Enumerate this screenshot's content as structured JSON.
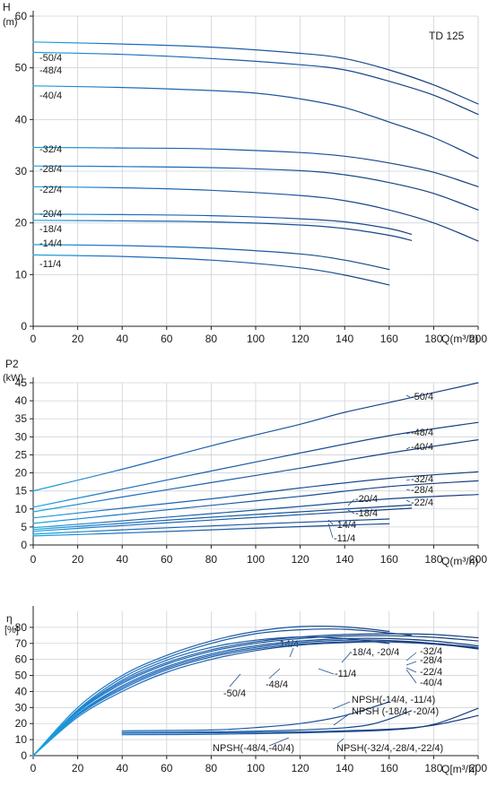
{
  "chart_data": [
    {
      "type": "line",
      "title": "TD 125",
      "ylabel": "H",
      "yunit": "(m)",
      "xlabel": "Q(m³/h)",
      "xlim": [
        0,
        200
      ],
      "ylim": [
        0,
        60
      ],
      "xticks": [
        0,
        20,
        40,
        60,
        80,
        100,
        120,
        140,
        160,
        180,
        200
      ],
      "yticks": [
        0,
        10,
        20,
        30,
        40,
        50,
        60
      ],
      "grid": true,
      "series": [
        {
          "name": "-50/4",
          "x": [
            0,
            40,
            80,
            120,
            140,
            160,
            180,
            200
          ],
          "y": [
            55,
            54.6,
            54,
            52.8,
            51.8,
            49.6,
            46.7,
            43
          ]
        },
        {
          "name": "-48/4",
          "x": [
            0,
            40,
            80,
            120,
            140,
            160,
            180,
            200
          ],
          "y": [
            53,
            52.6,
            51.8,
            50.6,
            49.6,
            47.4,
            44.7,
            41
          ]
        },
        {
          "name": "-40/4",
          "x": [
            0,
            40,
            80,
            100,
            120,
            140,
            160,
            180,
            200
          ],
          "y": [
            46.5,
            46.2,
            45.6,
            45.1,
            44,
            42.3,
            39.5,
            36.5,
            32.5
          ]
        },
        {
          "name": "-32/4",
          "x": [
            0,
            40,
            80,
            120,
            140,
            160,
            180,
            200
          ],
          "y": [
            34.6,
            34.5,
            34.3,
            33.6,
            32.9,
            31.6,
            29.8,
            27
          ]
        },
        {
          "name": "-28/4",
          "x": [
            0,
            40,
            80,
            120,
            140,
            160,
            180,
            200
          ],
          "y": [
            31,
            30.9,
            30.7,
            30.1,
            29.3,
            27.8,
            25.7,
            22.5
          ]
        },
        {
          "name": "-22/4",
          "x": [
            0,
            40,
            80,
            120,
            140,
            160,
            180,
            200
          ],
          "y": [
            27,
            26.8,
            26.3,
            25.3,
            24.3,
            22.5,
            20,
            16.5
          ]
        },
        {
          "name": "-20/4",
          "x": [
            0,
            40,
            80,
            120,
            140,
            160,
            170
          ],
          "y": [
            21.7,
            21.6,
            21.4,
            20.8,
            20.2,
            18.9,
            17.8
          ]
        },
        {
          "name": "-18/4",
          "x": [
            0,
            40,
            80,
            120,
            140,
            160,
            170
          ],
          "y": [
            20.5,
            20.4,
            20.2,
            19.6,
            18.9,
            17.6,
            16.6
          ]
        },
        {
          "name": "-14/4",
          "x": [
            0,
            40,
            80,
            120,
            140,
            160
          ],
          "y": [
            15.8,
            15.6,
            15.1,
            14,
            12.8,
            11
          ]
        },
        {
          "name": "-11/4",
          "x": [
            0,
            40,
            80,
            120,
            140,
            160
          ],
          "y": [
            13.8,
            13.5,
            12.8,
            11.3,
            9.9,
            8
          ]
        }
      ]
    },
    {
      "type": "line",
      "ylabel": "P2",
      "yunit": "(kW)",
      "xlabel": "Q(m³/h)",
      "xlim": [
        0,
        200
      ],
      "ylim": [
        0,
        45
      ],
      "xticks": [
        0,
        20,
        40,
        60,
        80,
        100,
        120,
        140,
        160,
        180,
        200
      ],
      "yticks": [
        0,
        5,
        10,
        15,
        20,
        25,
        30,
        35,
        40,
        45
      ],
      "grid": true,
      "series": [
        {
          "name": "-50/4",
          "x": [
            0,
            40,
            80,
            120,
            140,
            160,
            200
          ],
          "y": [
            15,
            21,
            27.5,
            33.5,
            36.8,
            39.5,
            45
          ]
        },
        {
          "name": "-48/4",
          "x": [
            0,
            40,
            80,
            120,
            160,
            200
          ],
          "y": [
            10.5,
            15.5,
            20.5,
            25.5,
            30.3,
            34
          ]
        },
        {
          "name": "-40/4",
          "x": [
            0,
            40,
            80,
            120,
            160,
            200
          ],
          "y": [
            9.2,
            13.3,
            17.3,
            21.3,
            25.5,
            29.2
          ]
        },
        {
          "name": "-32/4",
          "x": [
            0,
            40,
            80,
            120,
            160,
            200
          ],
          "y": [
            7.5,
            10.2,
            12.8,
            15.8,
            18.5,
            20.3
          ]
        },
        {
          "name": "-28/4",
          "x": [
            0,
            40,
            80,
            120,
            160,
            200
          ],
          "y": [
            6,
            8.5,
            11,
            13.5,
            16.2,
            17.8
          ]
        },
        {
          "name": "-22/4",
          "x": [
            0,
            40,
            80,
            120,
            160,
            200
          ],
          "y": [
            4.8,
            6.7,
            8.7,
            10.7,
            12.8,
            14
          ]
        },
        {
          "name": "-20/4",
          "x": [
            0,
            40,
            80,
            120,
            170
          ],
          "y": [
            4.3,
            6,
            7.7,
            9.2,
            11.1
          ]
        },
        {
          "name": "-18/4",
          "x": [
            0,
            40,
            80,
            120,
            170
          ],
          "y": [
            3.8,
            5.4,
            6.9,
            8.4,
            10.2
          ]
        },
        {
          "name": "-14/4",
          "x": [
            0,
            40,
            80,
            120,
            160
          ],
          "y": [
            3,
            4.2,
            5.3,
            6.3,
            7.2
          ]
        },
        {
          "name": "-11/4",
          "x": [
            0,
            40,
            80,
            120,
            160
          ],
          "y": [
            2.5,
            3.3,
            4.2,
            5.1,
            5.9
          ]
        }
      ]
    },
    {
      "type": "line",
      "ylabel": "η",
      "yunit": "[%]",
      "xlabel": "Q[m³/h]",
      "xlim": [
        0,
        200
      ],
      "ylim": [
        0,
        90
      ],
      "xticks": [
        0,
        20,
        40,
        60,
        80,
        100,
        120,
        140,
        160,
        180,
        200
      ],
      "yticks": [
        0,
        10,
        20,
        30,
        40,
        50,
        60,
        70,
        80
      ],
      "grid": true,
      "series": [
        {
          "name": "-14/4",
          "x": [
            0,
            20,
            40,
            60,
            80,
            100,
            120,
            140,
            160
          ],
          "y": [
            0,
            30,
            50,
            62.5,
            71.5,
            77.5,
            80.5,
            80.3,
            77.5
          ]
        },
        {
          "name": "-18/4, -20/4",
          "x": [
            0,
            20,
            40,
            60,
            80,
            100,
            120,
            140,
            160,
            170
          ],
          "y": [
            0,
            28.5,
            48.5,
            61,
            70,
            76,
            78.5,
            78.8,
            76.5,
            75
          ]
        },
        {
          "name": "-11/4",
          "x": [
            0,
            20,
            40,
            60,
            80,
            100,
            120,
            140,
            160
          ],
          "y": [
            0,
            28,
            47,
            59.5,
            67.5,
            72,
            74,
            73,
            70
          ]
        },
        {
          "name": "-32/4",
          "x": [
            0,
            20,
            40,
            60,
            80,
            100,
            120,
            140,
            160,
            180,
            200
          ],
          "y": [
            0,
            27.5,
            46,
            58,
            66,
            71,
            74,
            75.5,
            76,
            75.5,
            73.5
          ]
        },
        {
          "name": "-28/4",
          "x": [
            0,
            20,
            40,
            60,
            80,
            100,
            120,
            140,
            160,
            180,
            200
          ],
          "y": [
            0,
            27,
            45,
            57,
            65,
            70,
            73,
            74.5,
            74.8,
            73.8,
            71.5
          ]
        },
        {
          "name": "-22/4",
          "x": [
            0,
            20,
            40,
            60,
            80,
            100,
            120,
            140,
            160,
            180,
            200
          ],
          "y": [
            0,
            26,
            43.5,
            55.5,
            63.5,
            68.5,
            71.5,
            73,
            73,
            71.5,
            68.5
          ]
        },
        {
          "name": "-40/4",
          "x": [
            0,
            20,
            40,
            60,
            80,
            100,
            120,
            140,
            160,
            180,
            200
          ],
          "y": [
            0,
            25.5,
            42.5,
            54.5,
            62.5,
            67.5,
            70.5,
            72,
            71.8,
            70,
            66.5
          ]
        },
        {
          "name": "-48/4",
          "x": [
            0,
            20,
            40,
            60,
            80,
            100,
            120,
            140,
            160,
            180,
            200
          ],
          "y": [
            0,
            25,
            41.5,
            53.5,
            61.5,
            66.5,
            69.5,
            71,
            71,
            69.5,
            67
          ]
        },
        {
          "name": "-50/4",
          "x": [
            0,
            20,
            40,
            60,
            80,
            100,
            120,
            140,
            160,
            180,
            200
          ],
          "y": [
            0,
            24,
            40,
            52,
            60,
            65.5,
            69,
            70.5,
            71,
            70,
            67.5
          ]
        },
        {
          "name": "NPSH(-14/4, -11/4)",
          "x": [
            40,
            80,
            100,
            120,
            140,
            160
          ],
          "y": [
            15.5,
            16,
            17.5,
            20,
            25,
            33.5
          ]
        },
        {
          "name": "NPSH (-18/4, -20/4)",
          "x": [
            40,
            80,
            120,
            150,
            170
          ],
          "y": [
            14.5,
            14.8,
            16,
            19,
            28
          ]
        },
        {
          "name": "NPSH(-48/4,-40/4)",
          "x": [
            40,
            80,
            120,
            160,
            180,
            200
          ],
          "y": [
            13,
            13.3,
            14.2,
            16,
            19.5,
            29.5
          ]
        },
        {
          "name": "NPSH(-32/4,-28/4,-22/4)",
          "x": [
            40,
            80,
            120,
            160,
            180,
            200
          ],
          "y": [
            14,
            14.2,
            14.8,
            16.5,
            19,
            25
          ]
        }
      ]
    }
  ]
}
